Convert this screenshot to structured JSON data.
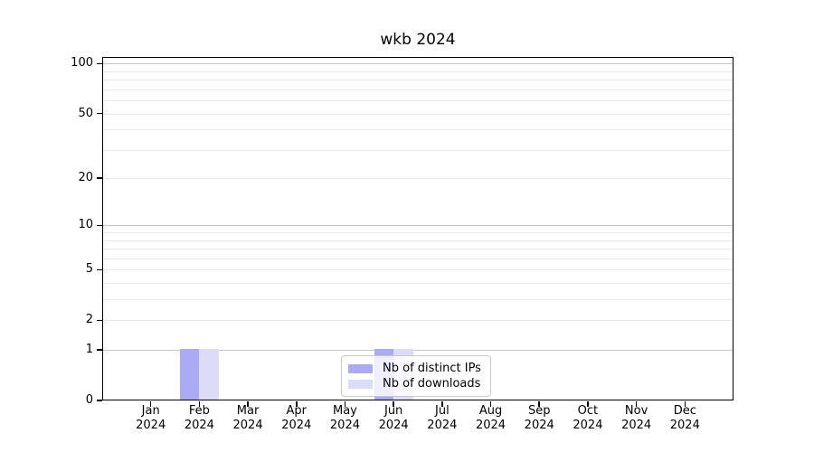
{
  "chart_data": {
    "type": "bar",
    "title": "wkb 2024",
    "y_scale": "log1p",
    "grid": "on",
    "categories": [
      "Jan 2024",
      "Feb 2024",
      "Mar 2024",
      "Apr 2024",
      "May 2024",
      "Jun 2024",
      "Jul 2024",
      "Aug 2024",
      "Sep 2024",
      "Oct 2024",
      "Nov 2024",
      "Dec 2024"
    ],
    "x_tick_labels": [
      {
        "line1": "Jan",
        "line2": "2024"
      },
      {
        "line1": "Feb",
        "line2": "2024"
      },
      {
        "line1": "Mar",
        "line2": "2024"
      },
      {
        "line1": "Apr",
        "line2": "2024"
      },
      {
        "line1": "May",
        "line2": "2024"
      },
      {
        "line1": "Jun",
        "line2": "2024"
      },
      {
        "line1": "Jul",
        "line2": "2024"
      },
      {
        "line1": "Aug",
        "line2": "2024"
      },
      {
        "line1": "Sep",
        "line2": "2024"
      },
      {
        "line1": "Oct",
        "line2": "2024"
      },
      {
        "line1": "Nov",
        "line2": "2024"
      },
      {
        "line1": "Dec",
        "line2": "2024"
      }
    ],
    "series": [
      {
        "name": "Nb of distinct IPs",
        "color": "#ababf5",
        "values": [
          0,
          1,
          0,
          0,
          0,
          1,
          0,
          0,
          0,
          0,
          0,
          0
        ]
      },
      {
        "name": "Nb of downloads",
        "color": "#dddcf8",
        "values": [
          0,
          1,
          0,
          0,
          0,
          1,
          0,
          0,
          0,
          0,
          0,
          0
        ]
      }
    ],
    "y_ticks": [
      {
        "value": 0,
        "label": "0"
      },
      {
        "value": 1,
        "label": "1"
      },
      {
        "value": 2,
        "label": "2"
      },
      {
        "value": 5,
        "label": "5"
      },
      {
        "value": 10,
        "label": "10"
      },
      {
        "value": 20,
        "label": "20"
      },
      {
        "value": 50,
        "label": "50"
      },
      {
        "value": 100,
        "label": "100"
      }
    ],
    "y_major_gridlines": [
      1,
      10,
      100
    ],
    "y_minor_gridlines": [
      2,
      3,
      4,
      5,
      6,
      7,
      8,
      9,
      20,
      30,
      40,
      50,
      60,
      70,
      80,
      90
    ],
    "ylim": [
      0,
      110
    ],
    "legend": {
      "position": "lower center",
      "entries": [
        "Nb of distinct IPs",
        "Nb of downloads"
      ]
    },
    "colors": {
      "major_grid": "#c6c6c6",
      "minor_grid": "#e8e8e8",
      "spine": "#000000",
      "text": "#000000",
      "legend_border": "#c9c9c9"
    }
  }
}
